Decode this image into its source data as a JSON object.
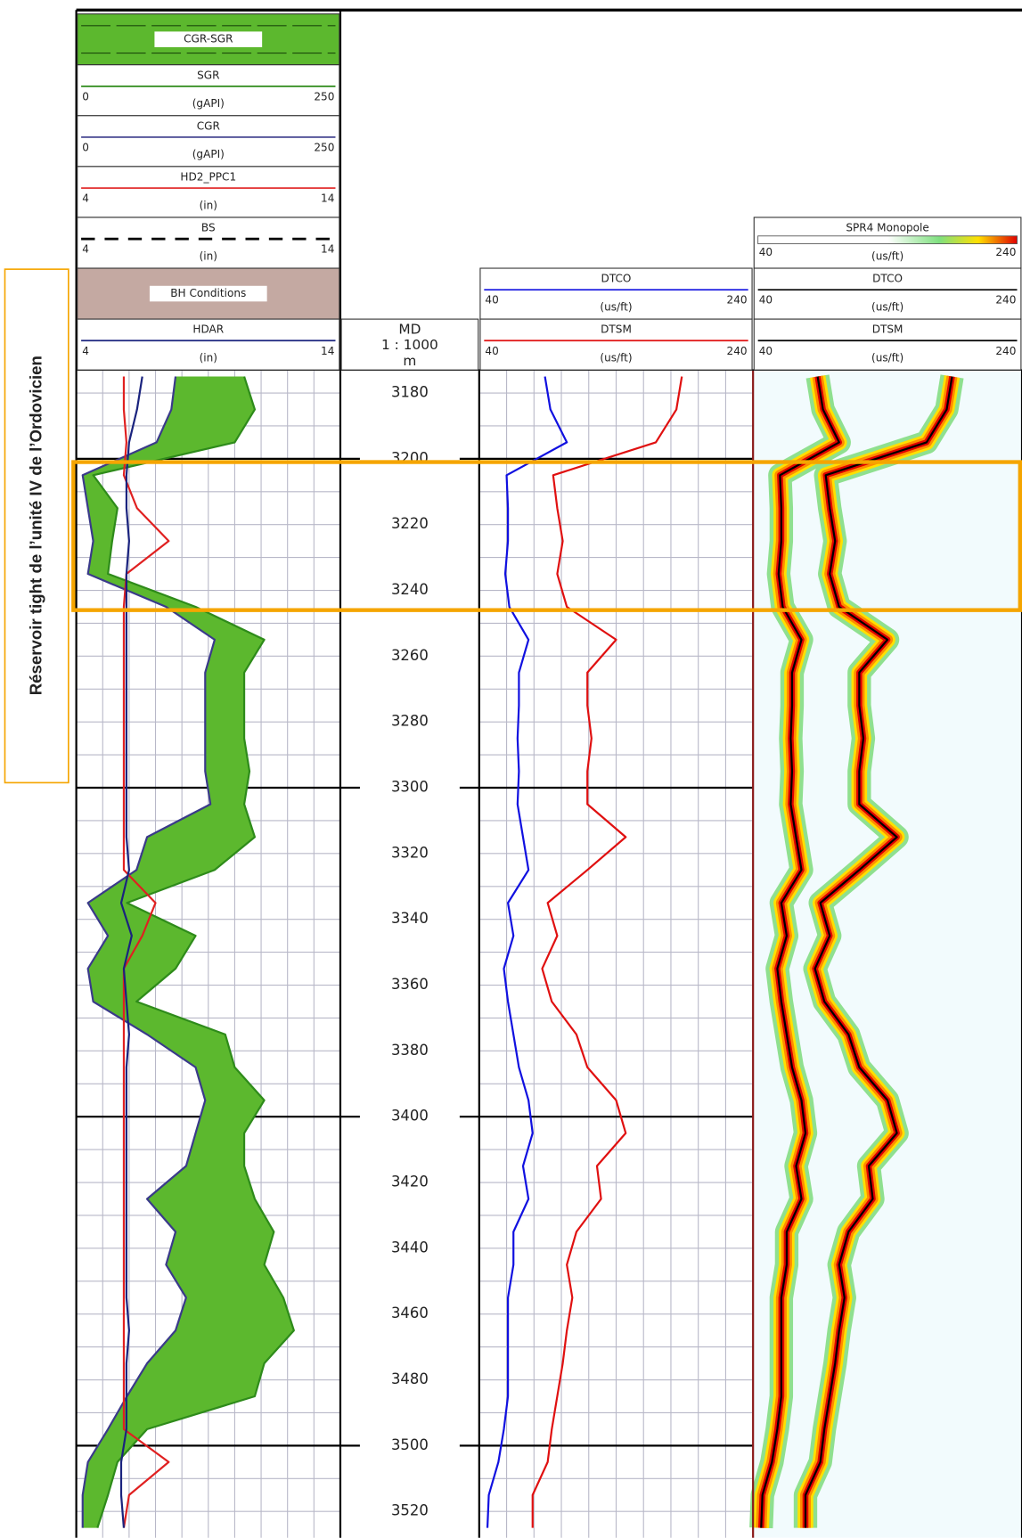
{
  "chart_data": {
    "type": "well_log",
    "annotation": "Réservoir tight de l’unité IV de l’Ordovicien",
    "depth": {
      "title": "MD",
      "scale": "1 : 1000",
      "unit": "m",
      "ylim": [
        3173,
        3528
      ],
      "yticks": [
        3180,
        3200,
        3220,
        3240,
        3260,
        3280,
        3300,
        3320,
        3340,
        3360,
        3380,
        3400,
        3420,
        3440,
        3460,
        3480,
        3500,
        3520
      ]
    },
    "depths": [
      3175,
      3185,
      3195,
      3205,
      3215,
      3225,
      3235,
      3245,
      3255,
      3265,
      3275,
      3285,
      3295,
      3305,
      3315,
      3325,
      3335,
      3345,
      3355,
      3365,
      3375,
      3385,
      3395,
      3405,
      3415,
      3425,
      3435,
      3445,
      3455,
      3465,
      3475,
      3485,
      3495,
      3505,
      3515,
      3525
    ],
    "highlight": {
      "top": 3201,
      "bottom": 3246,
      "color": "#f5a500"
    },
    "tracks": [
      {
        "fill_label": "CGR-SGR",
        "fill_color": "#5cb82e",
        "section_label": "BH Conditions",
        "curves": [
          {
            "name": "SGR",
            "unit": "(gAPI)",
            "xlim": [
              0,
              250
            ],
            "color": "#2e8b1a",
            "values": [
              159,
              169,
              150,
              16,
              39,
              34,
              30,
              113,
              178,
              159,
              159,
              159,
              164,
              159,
              169,
              131,
              48,
              113,
              94,
              57,
              141,
              150,
              178,
              159,
              159,
              169,
              187,
              178,
              196,
              206,
              178,
              169,
              67,
              39,
              30,
              20
            ]
          },
          {
            "name": "CGR",
            "unit": "(gAPI)",
            "xlim": [
              0,
              250
            ],
            "color": "#3a3a8a",
            "values": [
              94,
              90,
              76,
              6,
              11,
              16,
              11,
              85,
              131,
              122,
              122,
              122,
              122,
              127,
              67,
              57,
              11,
              30,
              11,
              16,
              67,
              113,
              122,
              113,
              104,
              67,
              94,
              85,
              104,
              94,
              67,
              48,
              30,
              11,
              6,
              6
            ]
          },
          {
            "name": "HD2_PPC1",
            "unit": "(in)",
            "xlim": [
              4,
              14
            ],
            "color": "#e02020",
            "values": [
              5.8,
              5.8,
              5.9,
              5.8,
              6.3,
              7.5,
              5.9,
              5.8,
              5.8,
              5.8,
              5.8,
              5.8,
              5.8,
              5.8,
              5.8,
              5.8,
              7.0,
              6.5,
              5.8,
              5.8,
              5.8,
              5.8,
              5.8,
              5.8,
              5.8,
              5.8,
              5.8,
              5.8,
              5.8,
              5.8,
              5.8,
              5.8,
              5.8,
              7.5,
              6.0,
              5.8
            ]
          },
          {
            "name": "BS",
            "unit": "(in)",
            "xlim": [
              4,
              14
            ],
            "color": "#000000",
            "dashed": true
          },
          {
            "name": "HDAR",
            "unit": "(in)",
            "xlim": [
              4,
              14
            ],
            "color": "#1a237e",
            "values": [
              6.5,
              6.3,
              6.0,
              5.9,
              5.9,
              6.0,
              5.9,
              5.9,
              5.9,
              5.9,
              5.9,
              5.9,
              5.9,
              5.9,
              5.9,
              6.0,
              5.7,
              6.1,
              5.8,
              5.9,
              6.0,
              5.9,
              5.9,
              5.9,
              5.9,
              5.9,
              5.9,
              5.9,
              5.9,
              6.0,
              5.9,
              5.9,
              5.9,
              5.7,
              5.7,
              5.8
            ]
          }
        ]
      },
      {
        "curves": [
          {
            "name": "DTCO",
            "unit": "(us/ft)",
            "xlim": [
              40,
              240
            ],
            "color": "#1010e0",
            "values": [
              88,
              92,
              104,
              60,
              61,
              61,
              59,
              62,
              76,
              69,
              69,
              68,
              69,
              68,
              72,
              76,
              61,
              65,
              58,
              61,
              65,
              69,
              76,
              79,
              72,
              76,
              65,
              65,
              61,
              61,
              61,
              61,
              58,
              54,
              47,
              46
            ]
          },
          {
            "name": "DTSM",
            "unit": "(us/ft)",
            "xlim": [
              40,
              240
            ],
            "color": "#e01010",
            "values": [
              188,
              184,
              169,
              94,
              97,
              101,
              97,
              104,
              140,
              119,
              119,
              122,
              119,
              119,
              147,
              119,
              90,
              97,
              86,
              93,
              111,
              119,
              140,
              147,
              126,
              129,
              111,
              104,
              108,
              104,
              101,
              97,
              93,
              90,
              79,
              79
            ]
          }
        ]
      },
      {
        "image_label": "SPR4 Monopole",
        "image_unit": "(us/ft)",
        "image_range": [
          40,
          240
        ],
        "curves": [
          {
            "name": "DTCO",
            "unit": "(us/ft)",
            "xlim": [
              40,
              240
            ],
            "color": "#000000",
            "values": [
              88,
              92,
              104,
              60,
              61,
              61,
              59,
              62,
              76,
              69,
              69,
              68,
              69,
              68,
              72,
              76,
              61,
              65,
              58,
              61,
              65,
              69,
              76,
              79,
              72,
              76,
              65,
              65,
              61,
              61,
              61,
              61,
              58,
              54,
              47,
              46
            ]
          },
          {
            "name": "DTSM",
            "unit": "(us/ft)",
            "xlim": [
              40,
              240
            ],
            "color": "#000000",
            "values": [
              188,
              184,
              169,
              94,
              97,
              101,
              97,
              104,
              140,
              119,
              119,
              122,
              119,
              119,
              147,
              119,
              90,
              97,
              86,
              93,
              111,
              119,
              140,
              147,
              126,
              129,
              111,
              104,
              108,
              104,
              101,
              97,
              93,
              90,
              79,
              79
            ]
          }
        ]
      }
    ]
  }
}
